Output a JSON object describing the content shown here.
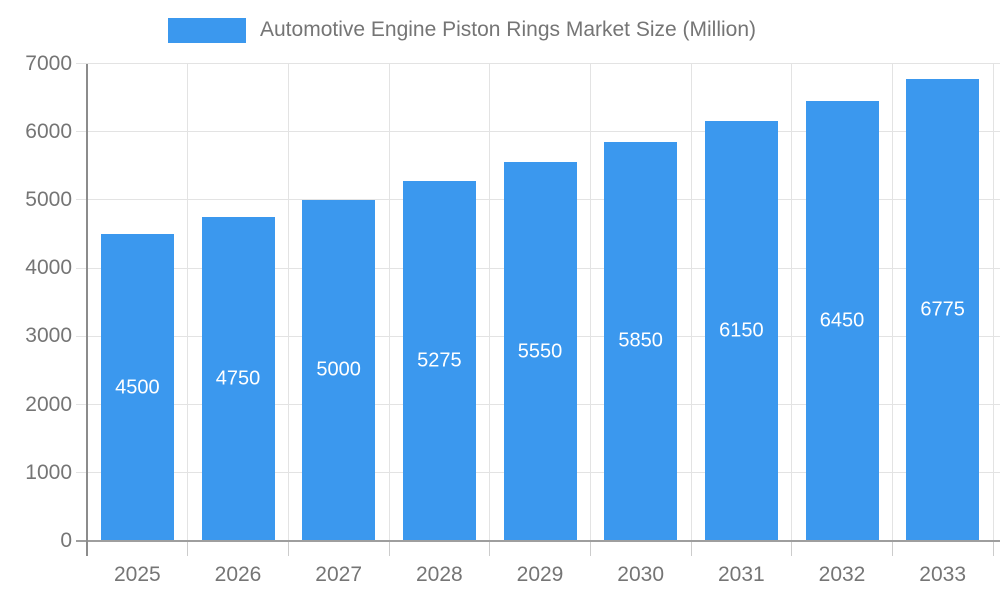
{
  "legend": {
    "label": "Automotive Engine Piston Rings Market Size (Million)"
  },
  "chart_data": {
    "type": "bar",
    "title": "Automotive Engine Piston Rings Market Size (Million)",
    "categories": [
      "2025",
      "2026",
      "2027",
      "2028",
      "2029",
      "2030",
      "2031",
      "2032",
      "2033"
    ],
    "values": [
      4500,
      4750,
      5000,
      5275,
      5550,
      5850,
      6150,
      6450,
      6775
    ],
    "xlabel": "",
    "ylabel": "",
    "ylim": [
      0,
      7000
    ],
    "ytick_step": 1000,
    "yticks": [
      "0",
      "1000",
      "2000",
      "3000",
      "4000",
      "5000",
      "6000",
      "7000"
    ],
    "grid": true,
    "legend_position": "top",
    "value_label_position": "inside-center",
    "colors": {
      "bar": "#3b98ee",
      "gridline": "#e3e3e3",
      "axis": "#9e9e9e",
      "tick": "#cccccc",
      "axis_label": "#757575",
      "value_label": "#ffffff",
      "background": "#ffffff"
    }
  }
}
